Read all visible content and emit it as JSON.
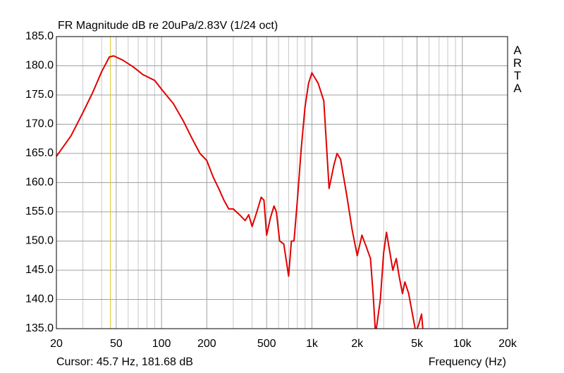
{
  "chart_data": {
    "type": "line",
    "title": "FR Magnitude dB re 20uPa/2.83V (1/24 oct)",
    "xlabel": "Frequency (Hz)",
    "watermark": "ARTA",
    "cursor": {
      "x": 45.7,
      "label": "Cursor: 45.7 Hz, 181.68 dB",
      "color": "#e0d040"
    },
    "xscale": "log",
    "xlim": [
      20,
      20000
    ],
    "xticks": [
      20,
      50,
      100,
      200,
      500,
      {
        "value": 1000,
        "label": "1k"
      },
      {
        "value": 2000,
        "label": "2k"
      },
      {
        "value": 5000,
        "label": "5k"
      },
      {
        "value": 10000,
        "label": "10k"
      },
      {
        "value": 20000,
        "label": "20k"
      }
    ],
    "xminor": [
      30,
      40,
      60,
      70,
      80,
      90,
      300,
      400,
      600,
      700,
      800,
      900,
      3000,
      4000,
      6000,
      7000,
      8000,
      9000
    ],
    "ylim": [
      135,
      185
    ],
    "yticks": [
      {
        "value": 135,
        "label": "135.0"
      },
      {
        "value": 140,
        "label": "140.0"
      },
      {
        "value": 145,
        "label": "145.0"
      },
      {
        "value": 150,
        "label": "150.0"
      },
      {
        "value": 155,
        "label": "155.0"
      },
      {
        "value": 160,
        "label": "160.0"
      },
      {
        "value": 165,
        "label": "165.0"
      },
      {
        "value": 170,
        "label": "170.0"
      },
      {
        "value": 175,
        "label": "175.0"
      },
      {
        "value": 180,
        "label": "180.0"
      },
      {
        "value": 185,
        "label": "185.0"
      }
    ],
    "grid": true,
    "x": [
      20,
      25,
      30,
      35,
      40,
      45,
      48,
      55,
      65,
      75,
      90,
      100,
      120,
      140,
      160,
      180,
      200,
      220,
      240,
      260,
      280,
      300,
      330,
      360,
      380,
      400,
      430,
      460,
      480,
      500,
      530,
      560,
      580,
      610,
      650,
      700,
      730,
      760,
      800,
      850,
      900,
      950,
      1000,
      1100,
      1200,
      1300,
      1400,
      1470,
      1550,
      1700,
      1850,
      2000,
      2150,
      2300,
      2450,
      2550,
      2650,
      2850,
      3000,
      3130,
      3300,
      3450,
      3640,
      3800,
      4000,
      4150,
      4400,
      4700,
      4900,
      5100,
      5360,
      5500
    ],
    "series": [
      {
        "name": "FR",
        "color": "#e00000",
        "values": [
          164.5,
          168,
          172,
          175.5,
          179,
          181.5,
          181.7,
          181,
          179.8,
          178.5,
          177.5,
          176,
          173.5,
          170.5,
          167.5,
          165,
          163.8,
          161,
          159,
          157,
          155.5,
          155.5,
          154.5,
          153.5,
          154.5,
          152.5,
          155,
          157.5,
          157,
          151,
          154,
          156,
          155,
          150,
          149.5,
          144,
          150,
          150,
          157,
          166,
          173,
          177,
          178.8,
          177,
          174,
          159,
          163,
          165,
          164,
          158,
          152,
          147.5,
          151,
          149,
          147,
          141,
          134,
          140,
          148,
          151.5,
          148,
          145,
          147,
          144,
          141,
          143,
          141,
          137,
          134.5,
          135.5,
          137.5,
          134
        ]
      }
    ]
  }
}
